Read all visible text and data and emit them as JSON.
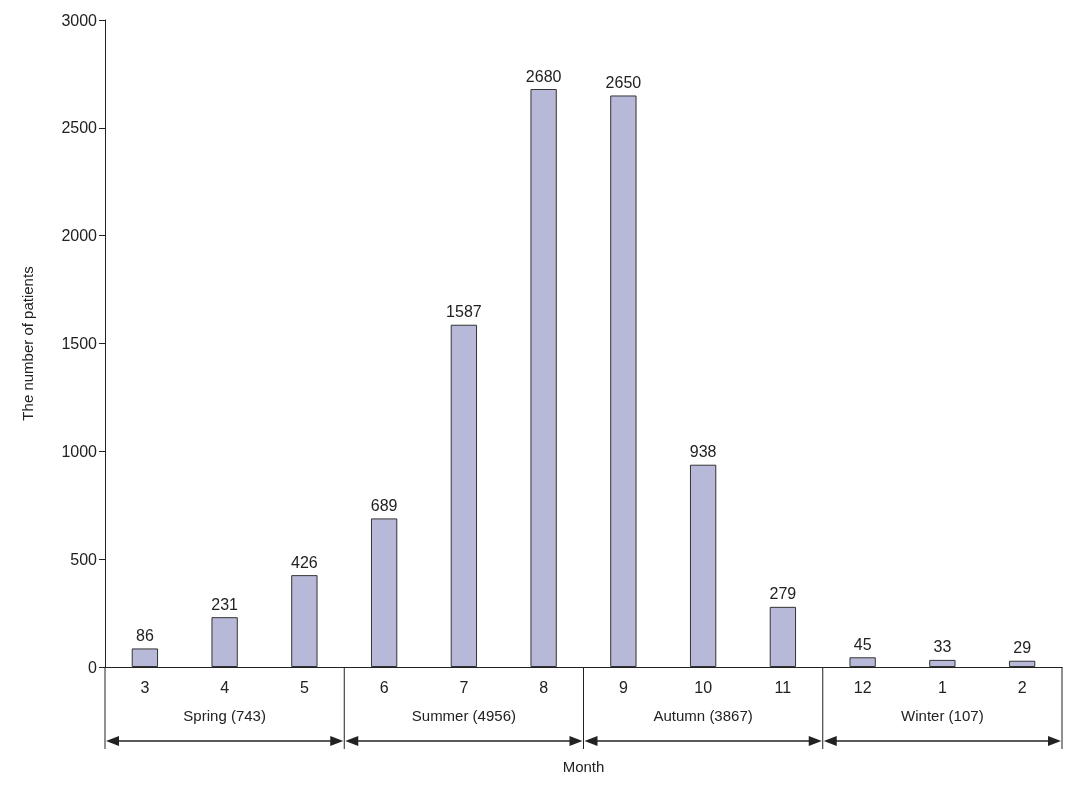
{
  "chart_data": {
    "type": "bar",
    "xlabel": "Month",
    "ylabel": "The number of patients",
    "categories": [
      "3",
      "4",
      "5",
      "6",
      "7",
      "8",
      "9",
      "10",
      "11",
      "12",
      "1",
      "2"
    ],
    "values": [
      86,
      231,
      426,
      689,
      1587,
      2680,
      2650,
      938,
      279,
      45,
      33,
      29
    ],
    "color": "#b8b8d8",
    "data_labels": true,
    "grid": false,
    "ylim": [
      0,
      3000
    ],
    "yticks": [
      0,
      500,
      1000,
      1500,
      2000,
      2500,
      3000
    ],
    "annotations": [
      "Spring (743)",
      "Summer (4956)",
      "Autumn (3867)",
      "Winter (107)"
    ]
  }
}
